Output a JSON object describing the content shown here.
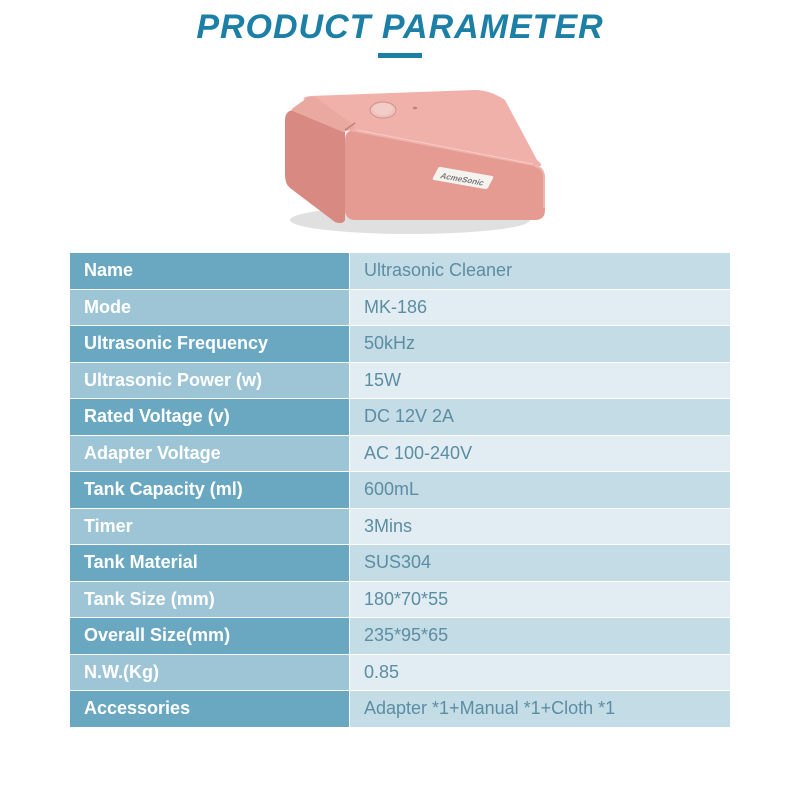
{
  "title": "PRODUCT PARAMETER",
  "title_color": "#1c7fa6",
  "underline_color": "#1c7fa6",
  "product": {
    "body_color": "#e59a92",
    "body_top_color": "#f0b1aa",
    "body_shadow": "#b8736b",
    "button_color": "#ecc2bc",
    "brand": "AcmeSonic",
    "brand_color": "#7a7a7a"
  },
  "table": {
    "label_bg_odd": "#6aa8c2",
    "label_bg_even": "#9ec5d6",
    "value_bg_odd": "#c4dce6",
    "value_bg_even": "#e1edf2",
    "value_color": "#5b8da3",
    "rows": [
      {
        "label": "Name",
        "value": "Ultrasonic Cleaner"
      },
      {
        "label": "Mode",
        "value": "MK-186"
      },
      {
        "label": "Ultrasonic Frequency",
        "value": "50kHz"
      },
      {
        "label": "Ultrasonic Power (w)",
        "value": "15W"
      },
      {
        "label": "Rated Voltage (v)",
        "value": "DC 12V 2A"
      },
      {
        "label": "Adapter Voltage",
        "value": "AC 100-240V"
      },
      {
        "label": "Tank Capacity (ml)",
        "value": "600mL"
      },
      {
        "label": "Timer",
        "value": "3Mins"
      },
      {
        "label": "Tank Material",
        "value": "SUS304"
      },
      {
        "label": "Tank Size (mm)",
        "value": "180*70*55"
      },
      {
        "label": "Overall Size(mm)",
        "value": "235*95*65"
      },
      {
        "label": "N.W.(Kg)",
        "value": "0.85"
      },
      {
        "label": "Accessories",
        "value": "Adapter *1+Manual *1+Cloth *1"
      }
    ]
  }
}
